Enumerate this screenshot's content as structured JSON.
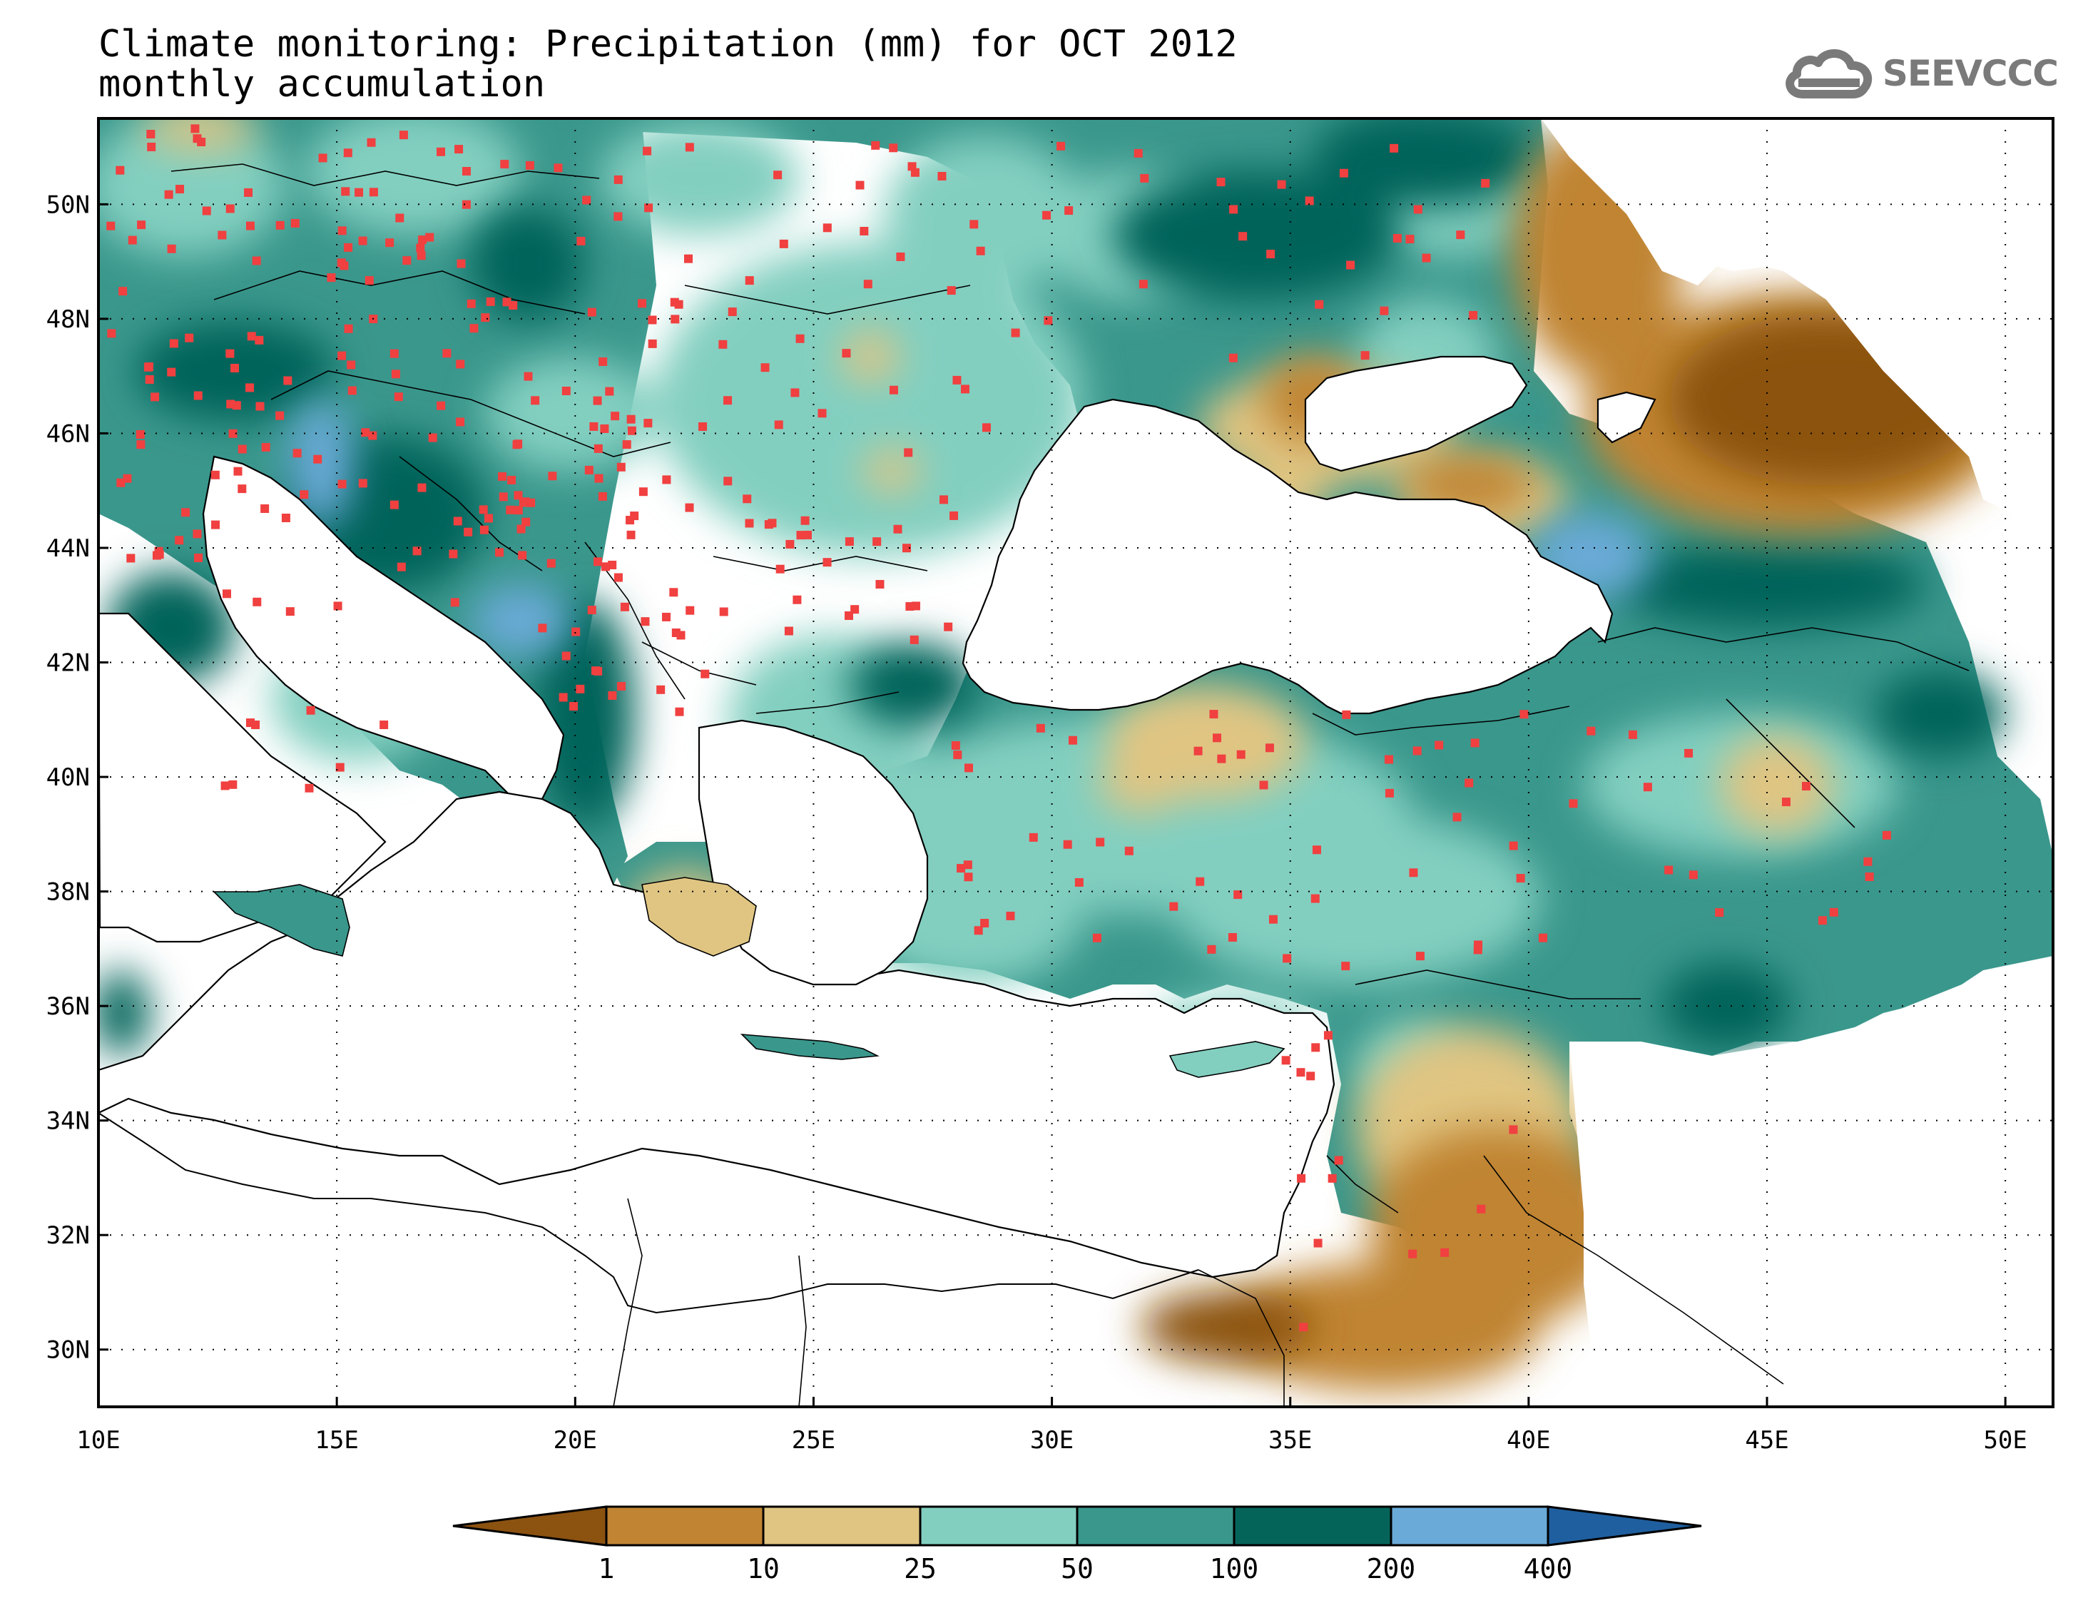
{
  "title": {
    "line1": "Climate monitoring: Precipitation (mm) for OCT 2012",
    "line2": "monthly accumulation"
  },
  "logo": {
    "text": "SEEVCCC",
    "icon": "cloud-icon"
  },
  "map": {
    "lon_range": [
      10,
      51
    ],
    "lat_range": [
      29,
      51.5
    ],
    "x_ticks": [
      "10E",
      "15E",
      "20E",
      "25E",
      "30E",
      "35E",
      "40E",
      "45E",
      "50E"
    ],
    "x_tick_values": [
      10,
      15,
      20,
      25,
      30,
      35,
      40,
      45,
      50
    ],
    "y_ticks": [
      "30N",
      "32N",
      "34N",
      "36N",
      "38N",
      "40N",
      "42N",
      "44N",
      "46N",
      "48N",
      "50N"
    ],
    "y_tick_values": [
      30,
      32,
      34,
      36,
      38,
      40,
      42,
      44,
      46,
      48,
      50
    ],
    "grid": "dotted",
    "station_color": "#f04040"
  },
  "colorbar": {
    "levels": [
      "1",
      "10",
      "25",
      "50",
      "100",
      "200",
      "400"
    ],
    "colors": [
      "#8b5210",
      "#c08432",
      "#e0c582",
      "#82cfc0",
      "#3a978c",
      "#04645a",
      "#6aaad8",
      "#1f5f9f"
    ],
    "units": "mm"
  },
  "chart_data": {
    "type": "heatmap",
    "variable": "Precipitation (mm)",
    "period": "OCT 2012",
    "accumulation": "monthly accumulation",
    "bins": [
      {
        "range": "<1",
        "color": "#8b5210"
      },
      {
        "range": "1-10",
        "color": "#c08432"
      },
      {
        "range": "10-25",
        "color": "#e0c582"
      },
      {
        "range": "25-50",
        "color": "#82cfc0"
      },
      {
        "range": "50-100",
        "color": "#3a978c"
      },
      {
        "range": "100-200",
        "color": "#04645a"
      },
      {
        "range": "200-400",
        "color": "#6aaad8"
      },
      {
        "range": ">400",
        "color": "#1f5f9f"
      }
    ],
    "xlim": [
      10,
      51
    ],
    "ylim": [
      29,
      51.5
    ],
    "regions": [
      {
        "lon": 14.6,
        "lat": 45.3,
        "bin": 6
      },
      {
        "lon": 18.8,
        "lat": 42.8,
        "bin": 6
      },
      {
        "lon": 42.8,
        "lat": 44.0,
        "bin": 6
      },
      {
        "lon": 45.5,
        "lat": 47.0,
        "bin": 0
      },
      {
        "lon": 34.5,
        "lat": 31.0,
        "bin": 0
      },
      {
        "lon": 38.5,
        "lat": 32.0,
        "bin": 1
      },
      {
        "lon": 41.0,
        "lat": 49.0,
        "bin": 1
      },
      {
        "lon": 32.5,
        "lat": 40.5,
        "bin": 2
      },
      {
        "lon": 22.5,
        "lat": 37.5,
        "bin": 2
      },
      {
        "lon": 44.8,
        "lat": 39.7,
        "bin": 2
      },
      {
        "lon": 25.0,
        "lat": 44.5,
        "bin": 3
      },
      {
        "lon": 30.0,
        "lat": 38.5,
        "bin": 3
      },
      {
        "lon": 20.0,
        "lat": 47.0,
        "bin": 4
      },
      {
        "lon": 31.0,
        "lat": 49.0,
        "bin": 5
      }
    ]
  }
}
